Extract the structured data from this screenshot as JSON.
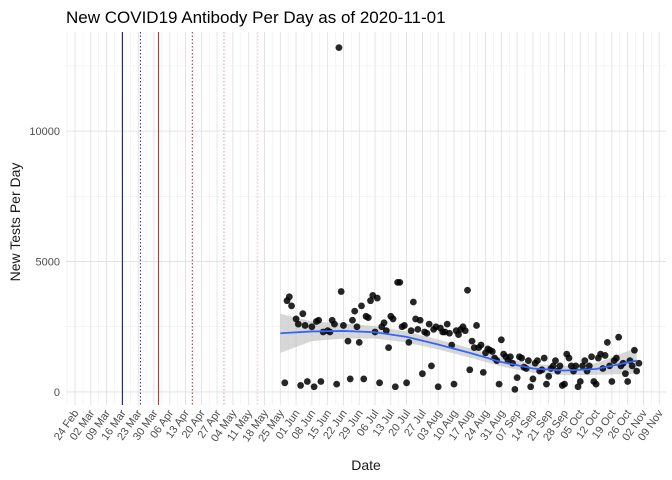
{
  "chart_data": {
    "type": "scatter",
    "title": "New COVID19 Antibody Per Day as of 2020-11-01",
    "xlabel": "Date",
    "ylabel": "New Tests Per Day",
    "xlim": [
      "2020-02-20",
      "2020-11-12"
    ],
    "ylim": [
      -500,
      13800
    ],
    "x_ticks": [
      "2020-02-24",
      "2020-03-02",
      "2020-03-09",
      "2020-03-16",
      "2020-03-23",
      "2020-03-30",
      "2020-04-06",
      "2020-04-13",
      "2020-04-20",
      "2020-04-27",
      "2020-05-04",
      "2020-05-11",
      "2020-05-18",
      "2020-05-25",
      "2020-06-01",
      "2020-06-08",
      "2020-06-15",
      "2020-06-22",
      "2020-06-29",
      "2020-07-06",
      "2020-07-13",
      "2020-07-20",
      "2020-07-27",
      "2020-08-03",
      "2020-08-10",
      "2020-08-17",
      "2020-08-24",
      "2020-08-31",
      "2020-09-07",
      "2020-09-14",
      "2020-09-21",
      "2020-09-28",
      "2020-10-05",
      "2020-10-12",
      "2020-10-19",
      "2020-10-26",
      "2020-11-02",
      "2020-11-09"
    ],
    "x_tick_labels": [
      "24 Feb",
      "02 Mar",
      "09 Mar",
      "16 Mar",
      "23 Mar",
      "30 Mar",
      "06 Apr",
      "13 Apr",
      "20 Apr",
      "27 Apr",
      "04 May",
      "11 May",
      "18 May",
      "25 May",
      "01 Jun",
      "08 Jun",
      "15 Jun",
      "22 Jun",
      "29 Jun",
      "06 Jul",
      "13 Jul",
      "20 Jul",
      "27 Jul",
      "03 Aug",
      "10 Aug",
      "17 Aug",
      "24 Aug",
      "31 Aug",
      "07 Sep",
      "14 Sep",
      "21 Sep",
      "28 Sep",
      "05 Oct",
      "12 Oct",
      "19 Oct",
      "26 Oct",
      "02 Nov",
      "09 Nov"
    ],
    "y_ticks": [
      0,
      5000,
      10000
    ],
    "y_tick_labels": [
      "0",
      "5000",
      "10000"
    ],
    "grid": true,
    "vlines": [
      {
        "date": "2020-03-16",
        "color": "#1a1a8c",
        "style": "solid"
      },
      {
        "date": "2020-03-24",
        "color": "#3a3ab0",
        "style": "dotted"
      },
      {
        "date": "2020-04-01",
        "color": "#c0392b",
        "style": "solid"
      },
      {
        "date": "2020-04-16",
        "color": "#c0392b",
        "style": "dotted"
      },
      {
        "date": "2020-04-30",
        "color": "#e0a8a8",
        "style": "dotted"
      },
      {
        "date": "2020-05-15",
        "color": "#ecc8c8",
        "style": "dotted"
      }
    ],
    "smooth": {
      "color": "#3366ff",
      "band_color": "#bdbdbd",
      "x": [
        "2020-05-25",
        "2020-06-08",
        "2020-06-22",
        "2020-07-06",
        "2020-07-20",
        "2020-08-03",
        "2020-08-17",
        "2020-08-31",
        "2020-09-14",
        "2020-09-28",
        "2020-10-12",
        "2020-10-30"
      ],
      "y": [
        2250,
        2320,
        2340,
        2290,
        2110,
        1820,
        1500,
        1150,
        900,
        820,
        880,
        1200
      ],
      "lower": [
        1500,
        1950,
        2050,
        2050,
        1900,
        1630,
        1320,
        980,
        730,
        640,
        660,
        700
      ],
      "upper": [
        3000,
        2700,
        2630,
        2530,
        2320,
        2010,
        1680,
        1320,
        1070,
        1000,
        1100,
        1700
      ]
    },
    "series": [
      {
        "color": "#000000",
        "points": [
          [
            "2020-05-28",
            3500
          ],
          [
            "2020-05-29",
            3650
          ],
          [
            "2020-05-27",
            350
          ],
          [
            "2020-05-30",
            3300
          ],
          [
            "2020-06-01",
            2800
          ],
          [
            "2020-06-02",
            2600
          ],
          [
            "2020-06-03",
            250
          ],
          [
            "2020-06-04",
            3000
          ],
          [
            "2020-06-05",
            2550
          ],
          [
            "2020-06-06",
            400
          ],
          [
            "2020-06-08",
            2500
          ],
          [
            "2020-06-09",
            200
          ],
          [
            "2020-06-10",
            2700
          ],
          [
            "2020-06-11",
            2750
          ],
          [
            "2020-06-12",
            400
          ],
          [
            "2020-06-13",
            2300
          ],
          [
            "2020-06-15",
            2350
          ],
          [
            "2020-06-16",
            2300
          ],
          [
            "2020-06-17",
            2750
          ],
          [
            "2020-06-18",
            2600
          ],
          [
            "2020-06-19",
            300
          ],
          [
            "2020-06-20",
            13200
          ],
          [
            "2020-06-21",
            3850
          ],
          [
            "2020-06-22",
            2550
          ],
          [
            "2020-06-24",
            1950
          ],
          [
            "2020-06-25",
            500
          ],
          [
            "2020-06-26",
            2750
          ],
          [
            "2020-06-27",
            3100
          ],
          [
            "2020-06-28",
            2500
          ],
          [
            "2020-06-29",
            1900
          ],
          [
            "2020-06-30",
            3300
          ],
          [
            "2020-07-01",
            500
          ],
          [
            "2020-07-02",
            2900
          ],
          [
            "2020-07-03",
            2850
          ],
          [
            "2020-07-04",
            3500
          ],
          [
            "2020-07-05",
            3700
          ],
          [
            "2020-07-06",
            2300
          ],
          [
            "2020-07-07",
            3600
          ],
          [
            "2020-07-08",
            350
          ],
          [
            "2020-07-09",
            2500
          ],
          [
            "2020-07-10",
            2650
          ],
          [
            "2020-07-11",
            2350
          ],
          [
            "2020-07-12",
            1700
          ],
          [
            "2020-07-13",
            2900
          ],
          [
            "2020-07-14",
            2800
          ],
          [
            "2020-07-15",
            200
          ],
          [
            "2020-07-16",
            4200
          ],
          [
            "2020-07-17",
            4200
          ],
          [
            "2020-07-18",
            2500
          ],
          [
            "2020-07-19",
            2550
          ],
          [
            "2020-07-20",
            350
          ],
          [
            "2020-07-21",
            1900
          ],
          [
            "2020-07-22",
            2350
          ],
          [
            "2020-07-23",
            3450
          ],
          [
            "2020-07-24",
            2800
          ],
          [
            "2020-07-25",
            2400
          ],
          [
            "2020-07-26",
            2750
          ],
          [
            "2020-07-27",
            700
          ],
          [
            "2020-07-28",
            2300
          ],
          [
            "2020-07-29",
            2250
          ],
          [
            "2020-07-30",
            2600
          ],
          [
            "2020-07-31",
            1000
          ],
          [
            "2020-08-01",
            2400
          ],
          [
            "2020-08-02",
            2500
          ],
          [
            "2020-08-03",
            200
          ],
          [
            "2020-08-04",
            2450
          ],
          [
            "2020-08-05",
            2300
          ],
          [
            "2020-08-06",
            2300
          ],
          [
            "2020-08-07",
            2600
          ],
          [
            "2020-08-08",
            2250
          ],
          [
            "2020-08-09",
            1800
          ],
          [
            "2020-08-10",
            300
          ],
          [
            "2020-08-11",
            2350
          ],
          [
            "2020-08-12",
            2200
          ],
          [
            "2020-08-13",
            2400
          ],
          [
            "2020-08-14",
            2500
          ],
          [
            "2020-08-15",
            2350
          ],
          [
            "2020-08-16",
            3900
          ],
          [
            "2020-08-17",
            850
          ],
          [
            "2020-08-18",
            1950
          ],
          [
            "2020-08-19",
            1700
          ],
          [
            "2020-08-20",
            2550
          ],
          [
            "2020-08-21",
            1700
          ],
          [
            "2020-08-22",
            1800
          ],
          [
            "2020-08-23",
            750
          ],
          [
            "2020-08-24",
            1500
          ],
          [
            "2020-08-25",
            1650
          ],
          [
            "2020-08-26",
            1600
          ],
          [
            "2020-08-27",
            1550
          ],
          [
            "2020-08-28",
            1300
          ],
          [
            "2020-08-29",
            1200
          ],
          [
            "2020-08-30",
            300
          ],
          [
            "2020-08-31",
            2000
          ],
          [
            "2020-09-01",
            1450
          ],
          [
            "2020-09-02",
            1350
          ],
          [
            "2020-09-03",
            1200
          ],
          [
            "2020-09-04",
            1350
          ],
          [
            "2020-09-05",
            1100
          ],
          [
            "2020-09-06",
            100
          ],
          [
            "2020-09-07",
            550
          ],
          [
            "2020-09-08",
            1350
          ],
          [
            "2020-09-09",
            1300
          ],
          [
            "2020-09-10",
            950
          ],
          [
            "2020-09-11",
            900
          ],
          [
            "2020-09-12",
            1200
          ],
          [
            "2020-09-13",
            200
          ],
          [
            "2020-09-14",
            500
          ],
          [
            "2020-09-15",
            1100
          ],
          [
            "2020-09-16",
            1200
          ],
          [
            "2020-09-17",
            800
          ],
          [
            "2020-09-18",
            850
          ],
          [
            "2020-09-19",
            1300
          ],
          [
            "2020-09-20",
            300
          ],
          [
            "2020-09-21",
            600
          ],
          [
            "2020-09-22",
            900
          ],
          [
            "2020-09-23",
            1000
          ],
          [
            "2020-09-24",
            1200
          ],
          [
            "2020-09-25",
            800
          ],
          [
            "2020-09-26",
            1000
          ],
          [
            "2020-09-27",
            250
          ],
          [
            "2020-09-28",
            300
          ],
          [
            "2020-09-29",
            1450
          ],
          [
            "2020-09-30",
            1300
          ],
          [
            "2020-10-01",
            1000
          ],
          [
            "2020-10-02",
            800
          ],
          [
            "2020-10-03",
            1000
          ],
          [
            "2020-10-04",
            200
          ],
          [
            "2020-10-05",
            400
          ],
          [
            "2020-10-06",
            1000
          ],
          [
            "2020-10-07",
            1200
          ],
          [
            "2020-10-08",
            800
          ],
          [
            "2020-10-09",
            1000
          ],
          [
            "2020-10-10",
            1350
          ],
          [
            "2020-10-11",
            400
          ],
          [
            "2020-10-12",
            300
          ],
          [
            "2020-10-13",
            1300
          ],
          [
            "2020-10-14",
            1450
          ],
          [
            "2020-10-15",
            900
          ],
          [
            "2020-10-16",
            1400
          ],
          [
            "2020-10-17",
            1900
          ],
          [
            "2020-10-18",
            1000
          ],
          [
            "2020-10-19",
            400
          ],
          [
            "2020-10-20",
            1200
          ],
          [
            "2020-10-21",
            1300
          ],
          [
            "2020-10-22",
            2100
          ],
          [
            "2020-10-23",
            1000
          ],
          [
            "2020-10-24",
            1100
          ],
          [
            "2020-10-25",
            700
          ],
          [
            "2020-10-26",
            400
          ],
          [
            "2020-10-27",
            1200
          ],
          [
            "2020-10-28",
            1000
          ],
          [
            "2020-10-29",
            1600
          ],
          [
            "2020-10-30",
            800
          ],
          [
            "2020-10-31",
            1100
          ]
        ]
      }
    ]
  }
}
